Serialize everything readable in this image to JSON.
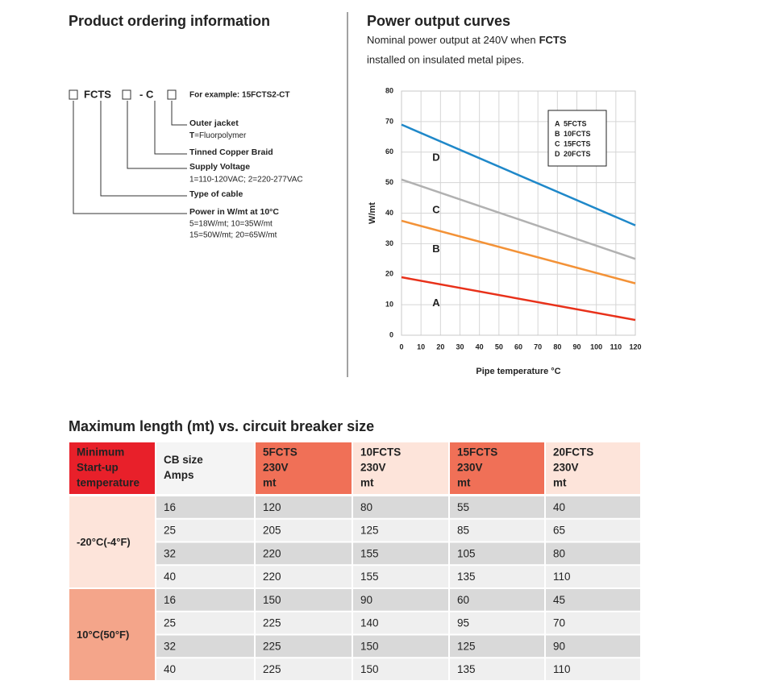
{
  "ordering": {
    "title": "Product ordering information",
    "code": [
      "FCTS",
      "- C"
    ],
    "example": "For example: 15FCTS2-CT",
    "items": [
      {
        "label": "Outer jacket",
        "bold": "T",
        "detail": [
          "=Fluorpolymer"
        ]
      },
      {
        "label": "Tinned Copper Braid"
      },
      {
        "label": "Supply Voltage",
        "detail": [
          "1=110-120VAC; 2=220-277VAC"
        ]
      },
      {
        "label": "Type of cable"
      },
      {
        "label": "Power in W/mt at 10°C",
        "detail": [
          "5=18W/mt; 10=35W/mt",
          "15=50W/mt; 20=65W/mt"
        ]
      }
    ]
  },
  "chart_data": {
    "type": "line",
    "title": "Power output curves",
    "subtitle": {
      "text1": "Nominal power output at 240V when",
      "bold": "FCTS",
      "text2": "installed on insulated metal pipes."
    },
    "xlabel": "Pipe temperature °C",
    "ylabel": "W/mt",
    "x": [
      0,
      120
    ],
    "xlim": [
      0,
      120
    ],
    "xticks": [
      0,
      10,
      20,
      30,
      40,
      50,
      60,
      70,
      80,
      90,
      100,
      110,
      120
    ],
    "ylim": [
      0,
      80
    ],
    "yticks": [
      0,
      10,
      20,
      30,
      40,
      50,
      60,
      70,
      80
    ],
    "series": [
      {
        "letter": "A",
        "name": "5FCTS",
        "color": "#e8311a",
        "values": [
          19,
          5
        ]
      },
      {
        "letter": "B",
        "name": "10FCTS",
        "color": "#f39237",
        "values": [
          37.5,
          17
        ]
      },
      {
        "letter": "C",
        "name": "15FCTS",
        "color": "#b1b1b1",
        "values": [
          51,
          25
        ]
      },
      {
        "letter": "D",
        "name": "20FCTS",
        "color": "#1f88c9",
        "values": [
          69,
          36
        ]
      }
    ]
  },
  "table": {
    "title": "Maximum length (mt) vs. circuit breaker size",
    "header": [
      [
        "Minimum",
        "Start-up",
        "temperature"
      ],
      [
        "CB size",
        "Amps"
      ],
      [
        "5FCTS",
        "230V",
        "mt"
      ],
      [
        "10FCTS",
        "230V",
        "mt"
      ],
      [
        "15FCTS",
        "230V",
        "mt"
      ],
      [
        "20FCTS",
        "230V",
        "mt"
      ]
    ],
    "groups": [
      {
        "label": "-20°C(-4°F)",
        "rows": [
          [
            16,
            120,
            80,
            55,
            40
          ],
          [
            25,
            205,
            125,
            85,
            65
          ],
          [
            32,
            220,
            155,
            105,
            80
          ],
          [
            40,
            220,
            155,
            135,
            110
          ]
        ]
      },
      {
        "label": "10°C(50°F)",
        "rows": [
          [
            16,
            150,
            90,
            60,
            45
          ],
          [
            25,
            225,
            140,
            95,
            70
          ],
          [
            32,
            225,
            150,
            125,
            90
          ],
          [
            40,
            225,
            150,
            135,
            110
          ]
        ]
      }
    ]
  }
}
